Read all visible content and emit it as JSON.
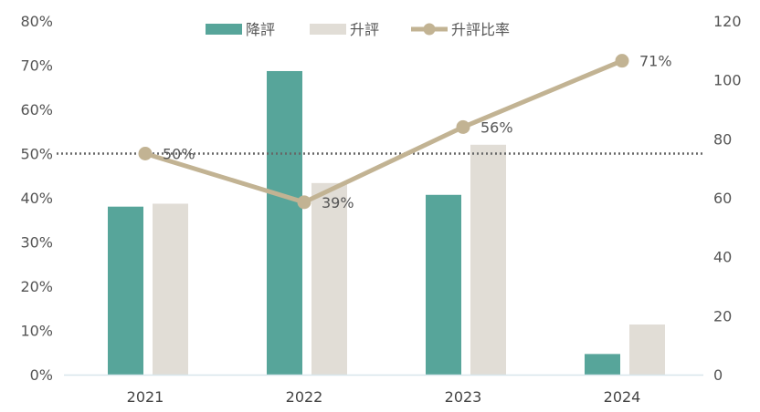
{
  "chart_data": {
    "type": "bar",
    "categories": [
      "2021",
      "2022",
      "2023",
      "2024"
    ],
    "series": [
      {
        "name": "降評",
        "type": "bar",
        "axis": "right",
        "values": [
          57,
          103,
          61,
          7
        ]
      },
      {
        "name": "升評",
        "type": "bar",
        "axis": "right",
        "values": [
          58,
          65,
          78,
          17
        ]
      },
      {
        "name": "升評比率",
        "type": "line",
        "axis": "left",
        "values": [
          0.5,
          0.39,
          0.56,
          0.71
        ]
      }
    ],
    "data_labels": [
      "50%",
      "39%",
      "56%",
      "71%"
    ],
    "left_axis": {
      "ticks": [
        "0%",
        "10%",
        "20%",
        "30%",
        "40%",
        "50%",
        "60%",
        "70%",
        "80%"
      ],
      "ylim": [
        0,
        0.8
      ]
    },
    "right_axis": {
      "ticks": [
        "0",
        "20",
        "40",
        "60",
        "80",
        "100",
        "120"
      ],
      "ylim": [
        0,
        120
      ]
    },
    "reference_line": {
      "value": 0.5,
      "axis": "left",
      "style": "dotted"
    },
    "legend_position": "top-center",
    "grid": false,
    "colors": {
      "downgrade": "#57a59a",
      "upgrade": "#e1ddd6",
      "ratio_line": "#c2b393",
      "reference": "#666666",
      "axis": "#d8e6ec"
    }
  }
}
